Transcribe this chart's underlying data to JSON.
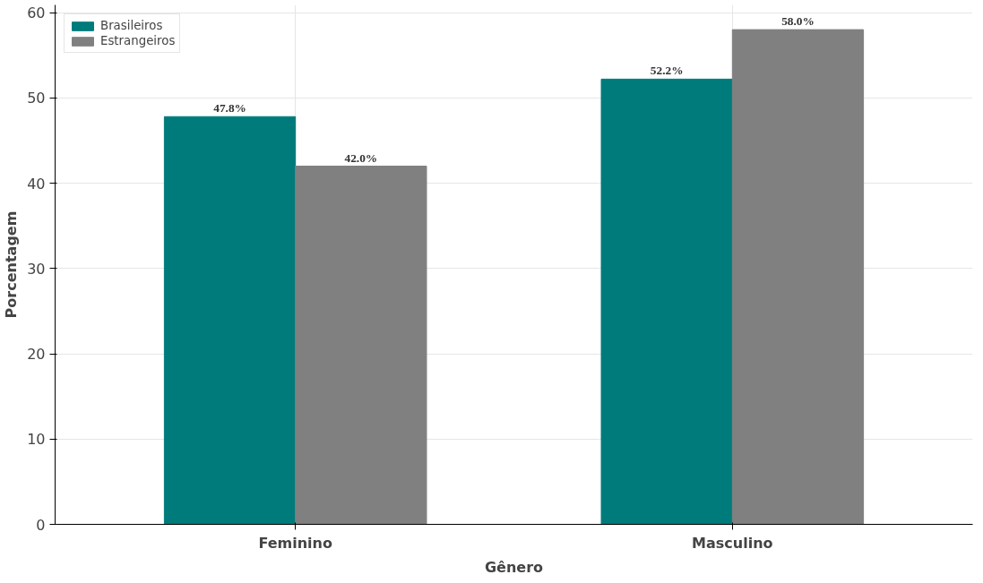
{
  "chart_data": {
    "type": "bar",
    "xlabel": "Gênero",
    "ylabel": "Porcentagem",
    "categories": [
      "Feminino",
      "Masculino"
    ],
    "series": [
      {
        "name": "Brasileiros",
        "color": "#007b7b",
        "values": [
          47.8,
          52.2
        ],
        "value_labels": [
          "47.8%",
          "52.2%"
        ]
      },
      {
        "name": "Estrangeiros",
        "color": "#808080",
        "values": [
          42.0,
          58.0
        ],
        "value_labels": [
          "42.0%",
          "58.0%"
        ]
      }
    ],
    "ylim": [
      0,
      60.9
    ],
    "yticks": [
      0,
      10,
      20,
      30,
      40,
      50,
      60
    ],
    "grid": true,
    "legend": "top left"
  }
}
